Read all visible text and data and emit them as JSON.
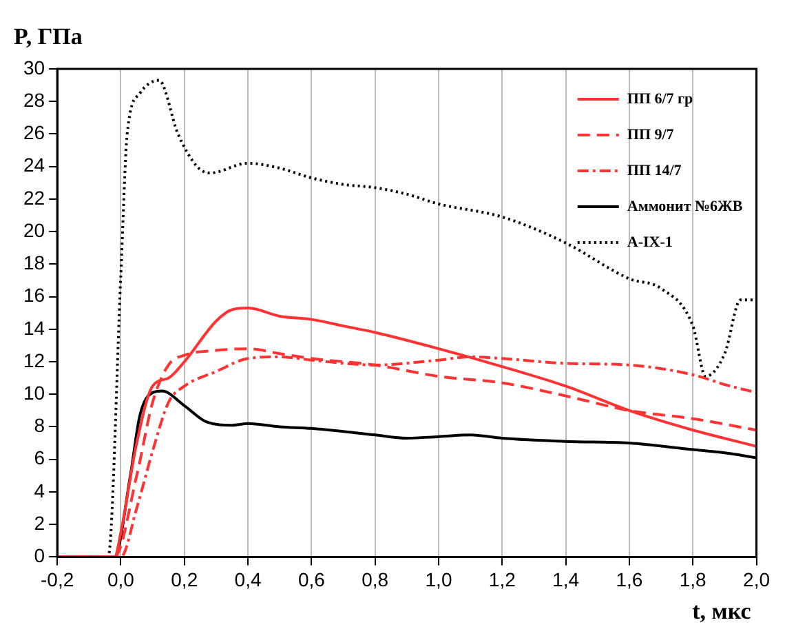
{
  "chart_data": {
    "type": "line",
    "xlabel": "t, мкс",
    "ylabel": "P, ГПа",
    "xlim": [
      -0.2,
      2.0
    ],
    "ylim": [
      0,
      30
    ],
    "xticks": [
      {
        "value": -0.2,
        "label": "-0,2"
      },
      {
        "value": 0,
        "label": "0,0"
      },
      {
        "value": 0.2,
        "label": "0,2"
      },
      {
        "value": 0.4,
        "label": "0,4"
      },
      {
        "value": 0.6,
        "label": "0,6"
      },
      {
        "value": 0.8,
        "label": "0,8"
      },
      {
        "value": 1.0,
        "label": "1,0"
      },
      {
        "value": 1.2,
        "label": "1,2"
      },
      {
        "value": 1.4,
        "label": "1,4"
      },
      {
        "value": 1.6,
        "label": "1,6"
      },
      {
        "value": 1.8,
        "label": "1,8"
      },
      {
        "value": 2.0,
        "label": "2,0"
      }
    ],
    "yticks": [
      0,
      2,
      4,
      6,
      8,
      10,
      12,
      14,
      16,
      18,
      20,
      22,
      24,
      26,
      28,
      30
    ],
    "grid": "x",
    "legend": "top right",
    "marker": "none",
    "series": [
      {
        "name": "ПП 6/7 гр",
        "color": "#ff3333",
        "line_style": "solid",
        "x": [
          -0.2,
          -0.02,
          0,
          0.05,
          0.1,
          0.15,
          0.2,
          0.3,
          0.35,
          0.4,
          0.5,
          0.6,
          0.7,
          0.8,
          1.0,
          1.2,
          1.4,
          1.6,
          1.8,
          2.0
        ],
        "values": [
          0,
          0,
          1.5,
          7,
          10.5,
          11,
          12,
          14.5,
          15.2,
          15.3,
          14.8,
          14.6,
          14.2,
          13.8,
          12.8,
          11.7,
          10.5,
          9.0,
          7.8,
          6.8
        ]
      },
      {
        "name": "ПП 9/7",
        "color": "#ff3333",
        "line_style": "dashed",
        "x": [
          -0.2,
          -0.02,
          0.05,
          0.1,
          0.15,
          0.2,
          0.3,
          0.4,
          0.5,
          0.6,
          0.8,
          1.0,
          1.2,
          1.4,
          1.6,
          1.8,
          2.0
        ],
        "values": [
          0,
          0,
          5,
          9.5,
          11.8,
          12.4,
          12.7,
          12.8,
          12.5,
          12.2,
          11.8,
          11.1,
          10.7,
          9.9,
          9.0,
          8.5,
          7.8
        ]
      },
      {
        "name": "ПП 14/7",
        "color": "#ff3333",
        "line_style": "dashdot",
        "x": [
          -0.2,
          0,
          0.05,
          0.1,
          0.15,
          0.2,
          0.3,
          0.4,
          0.5,
          0.6,
          0.8,
          1.0,
          1.1,
          1.2,
          1.4,
          1.6,
          1.8,
          1.9,
          2.0
        ],
        "values": [
          0,
          0,
          3,
          6.5,
          9.5,
          10.5,
          11.4,
          12.2,
          12.3,
          12.1,
          11.8,
          12.1,
          12.3,
          12.2,
          11.9,
          11.8,
          11.2,
          10.6,
          10.1
        ]
      },
      {
        "name": "Аммонит №6ЖВ",
        "color": "#000000",
        "line_style": "solid",
        "x": [
          -0.2,
          -0.02,
          0.03,
          0.06,
          0.1,
          0.13,
          0.2,
          0.27,
          0.35,
          0.4,
          0.5,
          0.6,
          0.8,
          0.9,
          1.0,
          1.1,
          1.2,
          1.4,
          1.6,
          1.8,
          1.9,
          2.0
        ],
        "values": [
          0,
          0,
          5,
          8.7,
          10.1,
          10.2,
          9.3,
          8.3,
          8.1,
          8.2,
          8.0,
          7.9,
          7.5,
          7.3,
          7.4,
          7.5,
          7.3,
          7.1,
          7.0,
          6.6,
          6.4,
          6.1
        ]
      },
      {
        "name": "А-IX-1",
        "color": "#000000",
        "line_style": "dotted",
        "x": [
          -0.2,
          -0.04,
          0,
          0.02,
          0.06,
          0.12,
          0.18,
          0.24,
          0.28,
          0.4,
          0.5,
          0.6,
          0.7,
          0.8,
          0.9,
          1.0,
          1.2,
          1.4,
          1.6,
          1.7,
          1.8,
          1.84,
          1.9,
          1.95,
          2.0
        ],
        "values": [
          0,
          0,
          17.3,
          26,
          28.5,
          29.3,
          26,
          24,
          23.6,
          24.2,
          23.9,
          23.3,
          22.9,
          22.7,
          22.3,
          21.7,
          20.9,
          19.3,
          17.1,
          16.5,
          14.2,
          11.1,
          12.5,
          15.8,
          15.8
        ]
      }
    ]
  }
}
